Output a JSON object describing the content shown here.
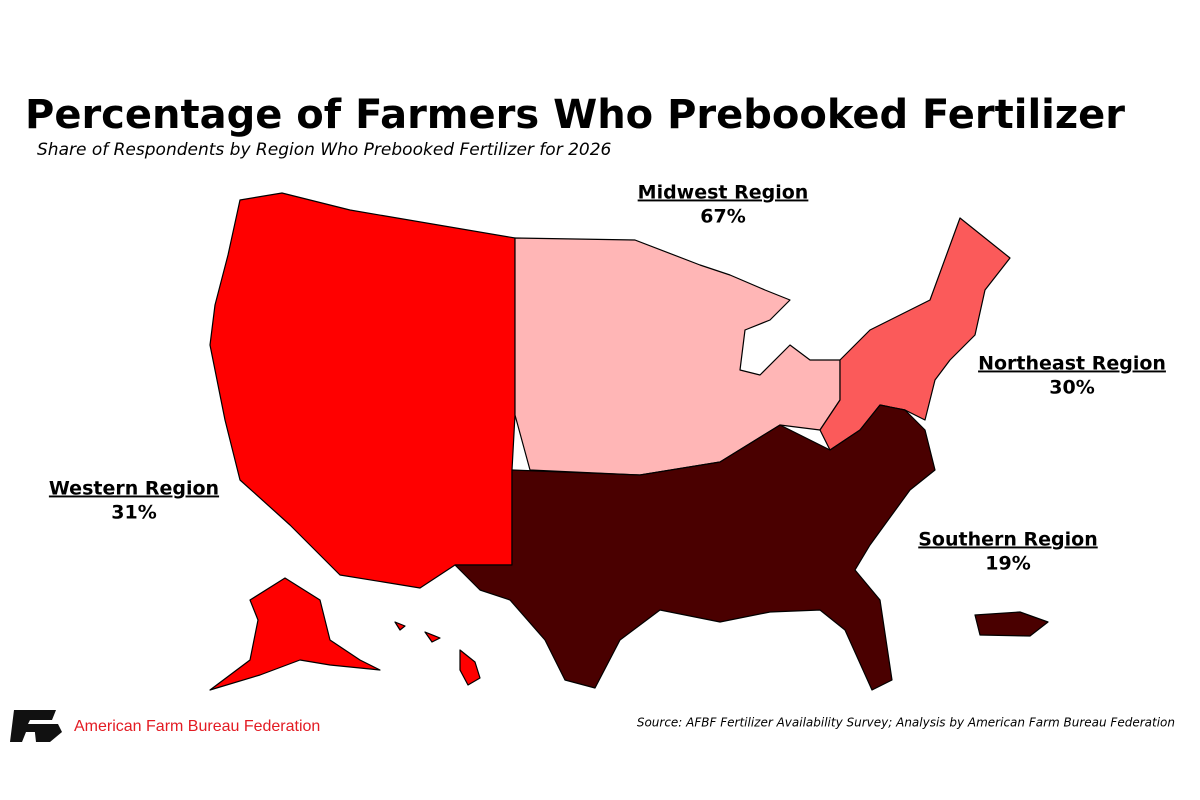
{
  "chart_data": {
    "type": "map",
    "title": "Percentage of Farmers Who Prebooked Fertilizer",
    "subtitle": "Share of Respondents by Region Who Prebooked Fertilizer for 2026",
    "categories": [
      "Western Region",
      "Midwest Region",
      "Northeast Region",
      "Southern Region"
    ],
    "values": [
      31,
      67,
      30,
      19
    ],
    "value_labels": [
      "31%",
      "67%",
      "30%",
      "19%"
    ],
    "colors": [
      "#ff0000",
      "#ffb6b6",
      "#fb5a5a",
      "#4a0000"
    ],
    "source": "Source: AFBF Fertilizer Availability Survey; Analysis by American Farm Bureau Federation",
    "organization": "American Farm Bureau Federation"
  }
}
